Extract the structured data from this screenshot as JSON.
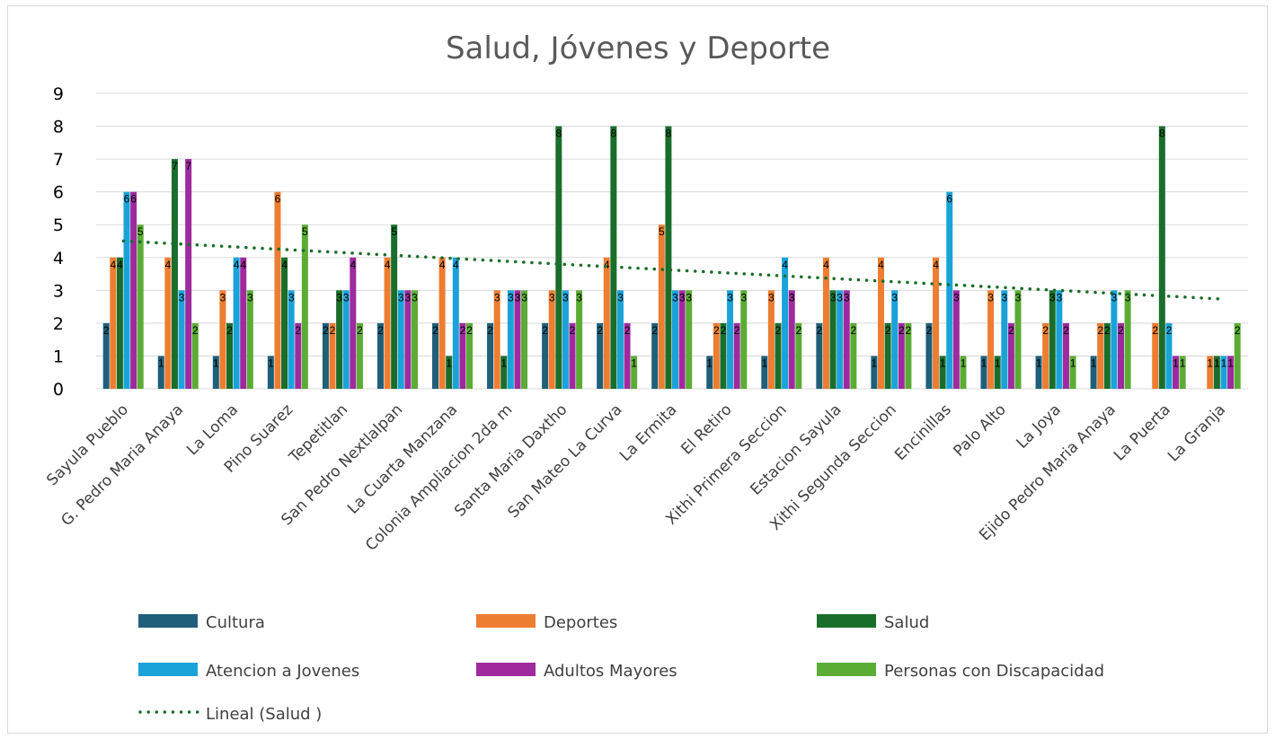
{
  "chart_data": {
    "type": "bar",
    "title": "Salud, Jóvenes y Deporte",
    "xlabel": "",
    "ylabel": "",
    "ylim": [
      0,
      9
    ],
    "yticks": [
      0,
      1,
      2,
      3,
      4,
      5,
      6,
      7,
      8,
      9
    ],
    "grid": true,
    "legend_position": "bottom",
    "categories": [
      "Sayula Pueblo",
      "G. Pedro Maria Anaya",
      "La Loma",
      "Pino Suarez",
      "Tepetitlan",
      "San Pedro Nextlalpan",
      "La Cuarta Manzana",
      "Colonia Ampliacion 2da m",
      "Santa Maria Daxtho",
      "San Mateo La Curva",
      "La Ermita",
      "El Retiro",
      "Xithi Primera Seccion",
      "Estacion Sayula",
      "Xithi Segunda Seccion",
      "Encinillas",
      "Palo Alto",
      "La Joya",
      "Ejido Pedro Maria Anaya",
      "La Puerta",
      "La Granja"
    ],
    "series": [
      {
        "name": "Cultura",
        "color": "#1f5f7a",
        "values": [
          2,
          1,
          1,
          1,
          2,
          2,
          2,
          2,
          2,
          2,
          2,
          1,
          1,
          2,
          1,
          2,
          1,
          1,
          1,
          null,
          null
        ]
      },
      {
        "name": "Deportes",
        "color": "#ed7d31",
        "values": [
          4,
          4,
          3,
          6,
          2,
          4,
          4,
          3,
          3,
          4,
          5,
          2,
          3,
          4,
          4,
          4,
          3,
          2,
          2,
          2,
          1
        ]
      },
      {
        "name": "Salud",
        "color": "#1a6e2c",
        "values": [
          4,
          7,
          2,
          4,
          3,
          5,
          1,
          1,
          8,
          8,
          8,
          2,
          2,
          3,
          2,
          1,
          1,
          3,
          2,
          8,
          1
        ]
      },
      {
        "name": "Atencion a Jovenes",
        "color": "#1aa3d9",
        "values": [
          6,
          3,
          4,
          3,
          3,
          3,
          4,
          3,
          3,
          3,
          3,
          3,
          4,
          3,
          3,
          6,
          3,
          3,
          3,
          2,
          1
        ]
      },
      {
        "name": "Adultos Mayores",
        "color": "#9e2a9e",
        "values": [
          6,
          7,
          4,
          2,
          4,
          3,
          2,
          3,
          2,
          2,
          3,
          2,
          3,
          3,
          2,
          3,
          2,
          2,
          2,
          1,
          1
        ]
      },
      {
        "name": "Personas con Discapacidad",
        "color": "#5aac35",
        "values": [
          5,
          2,
          3,
          5,
          2,
          3,
          2,
          3,
          3,
          1,
          3,
          3,
          2,
          2,
          2,
          1,
          3,
          1,
          3,
          1,
          2
        ]
      }
    ],
    "trendline": {
      "name": "Lineal (Salud )",
      "type": "linear",
      "series": "Salud",
      "color": "#1a6e2c",
      "style": "dotted"
    }
  }
}
